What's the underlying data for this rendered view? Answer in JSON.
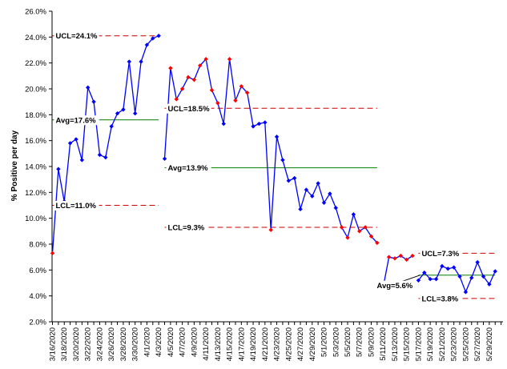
{
  "chart_data": {
    "type": "line",
    "ylabel": "% Positive per day",
    "xlabel": "",
    "ylim": [
      2.0,
      26.0
    ],
    "y_ticks": [
      "2.0%",
      "4.0%",
      "6.0%",
      "8.0%",
      "10.0%",
      "12.0%",
      "14.0%",
      "16.0%",
      "18.0%",
      "20.0%",
      "22.0%",
      "24.0%",
      "26.0%"
    ],
    "x_tick_labels": [
      "3/16/2020",
      "3/18/2020",
      "3/20/2020",
      "3/22/2020",
      "3/24/2020",
      "3/26/2020",
      "3/28/2020",
      "3/30/2020",
      "4/1/2020",
      "4/3/2020",
      "4/5/2020",
      "4/7/2020",
      "4/9/2020",
      "4/11/2020",
      "4/13/2020",
      "4/15/2020",
      "4/17/2020",
      "4/19/2020",
      "4/21/2020",
      "4/23/2020",
      "4/25/2020",
      "4/27/2020",
      "4/29/2020",
      "5/1/2020",
      "5/3/2020",
      "5/5/2020",
      "5/7/2020",
      "5/9/2020",
      "5/11/2020",
      "5/13/2020",
      "5/15/2020",
      "5/17/2020",
      "5/19/2020",
      "5/21/2020",
      "5/23/2020",
      "5/25/2020",
      "5/27/2020",
      "5/29/2020"
    ],
    "grid": false,
    "series_color": "#0000ff",
    "out_of_control_color": "#ff0000",
    "limit_line_color": "#cc0000",
    "avg_line_color": "#008000",
    "segments": [
      {
        "start_date": "3/16/2020",
        "values": [
          7.3,
          13.8,
          11.3,
          15.8,
          16.1,
          14.5,
          20.1,
          19.0,
          14.9,
          14.7,
          17.1,
          18.1,
          18.4,
          22.1,
          18.1,
          22.1,
          23.4,
          23.9,
          24.1
        ],
        "flags": [
          1,
          0,
          0,
          0,
          0,
          0,
          0,
          0,
          0,
          0,
          0,
          0,
          0,
          0,
          0,
          0,
          0,
          0,
          0
        ],
        "ucl": 24.1,
        "avg": 17.6,
        "lcl": 11.0,
        "labels": {
          "ucl": "UCL=24.1%",
          "avg": "Avg=17.6%",
          "lcl": "LCL=11.0%"
        }
      },
      {
        "start_date": "4/4/2020",
        "values": [
          14.6,
          21.6,
          19.2,
          20.0,
          20.9,
          20.7,
          21.8,
          22.3,
          19.9,
          18.9,
          17.3,
          22.3,
          19.1,
          20.2,
          19.7,
          17.1,
          17.3,
          17.4,
          9.1,
          16.3,
          14.5,
          12.9,
          13.1,
          10.7,
          12.2,
          11.7,
          12.7,
          11.2,
          11.9,
          10.8,
          9.3,
          8.5,
          10.3,
          9.0,
          9.3,
          8.6,
          8.1
        ],
        "flags": [
          0,
          1,
          1,
          1,
          1,
          1,
          1,
          1,
          1,
          1,
          0,
          1,
          1,
          1,
          1,
          0,
          0,
          0,
          1,
          0,
          0,
          0,
          0,
          0,
          0,
          0,
          0,
          0,
          0,
          0,
          1,
          1,
          0,
          1,
          1,
          1,
          1
        ],
        "ucl": 18.5,
        "avg": 13.9,
        "lcl": 9.3,
        "labels": {
          "ucl": "UCL=18.5%",
          "avg": "Avg=13.9%",
          "lcl": "LCL=9.3%"
        }
      },
      {
        "start_date": "5/11/2020",
        "values": [
          4.6,
          7.0,
          6.9,
          7.1,
          6.8,
          7.1
        ],
        "flags": [
          0,
          1,
          1,
          1,
          1,
          1
        ],
        "ucl": null,
        "avg": null,
        "lcl": null,
        "labels": null
      },
      {
        "start_date": "5/17/2020",
        "values": [
          5.2,
          5.8,
          5.3,
          5.3,
          6.3,
          6.1,
          6.2,
          5.5,
          4.3,
          5.4,
          6.6,
          5.5,
          4.9,
          5.9
        ],
        "flags": [
          0,
          0,
          0,
          0,
          0,
          0,
          0,
          0,
          0,
          0,
          0,
          0,
          0,
          0
        ],
        "ucl": 7.3,
        "avg": 5.6,
        "lcl": 3.8,
        "labels": {
          "ucl": "UCL=7.3%",
          "avg": "Avg=5.6%",
          "lcl": "LCL=3.8%"
        }
      }
    ]
  }
}
